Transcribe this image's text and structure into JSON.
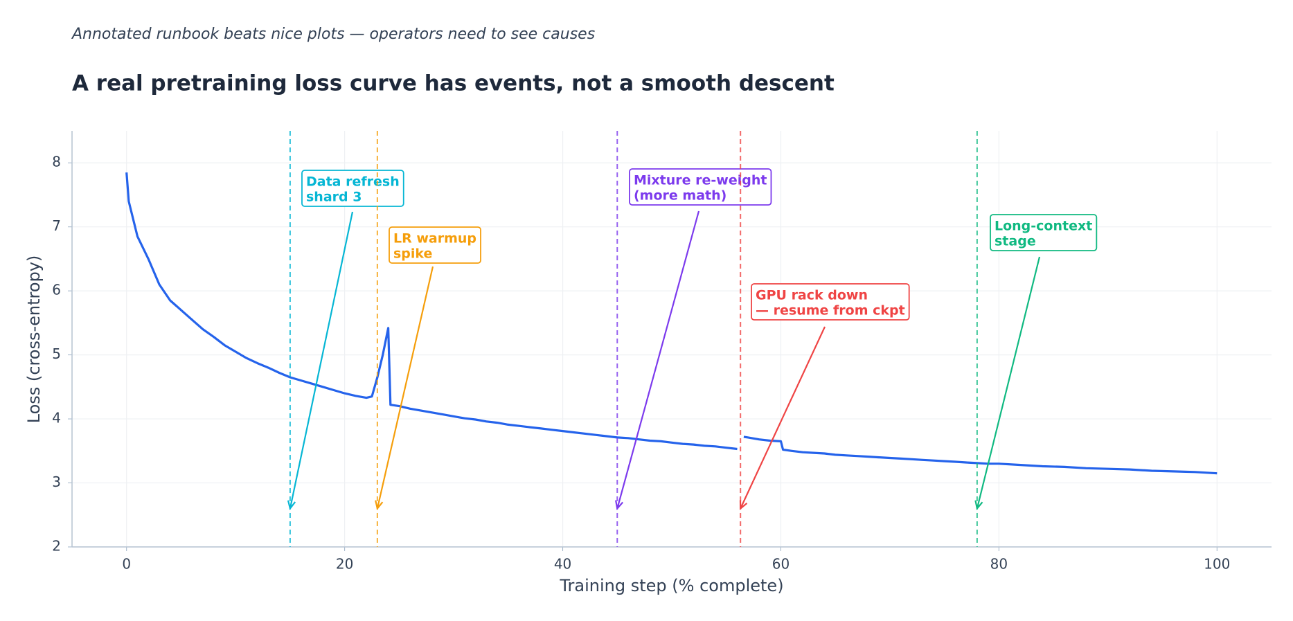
{
  "chart_data": {
    "type": "line",
    "subtitle": "Annotated runbook beats nice plots — operators need to see causes",
    "title": "A real pretraining loss curve has events, not a smooth descent",
    "x_label": "Training step (% complete)",
    "y_label": "Loss (cross-entropy)",
    "xlim": [
      -5,
      105
    ],
    "ylim": [
      2,
      8.5
    ],
    "xticks": [
      0,
      20,
      40,
      60,
      80,
      100
    ],
    "yticks": [
      2,
      3,
      4,
      5,
      6,
      7,
      8
    ],
    "grid": true,
    "color": "#2563eb",
    "x": [
      0,
      0.2,
      1,
      2,
      3,
      4,
      5,
      6,
      7,
      8,
      9,
      10,
      11,
      12,
      13,
      14,
      15,
      16,
      17,
      18,
      19,
      20,
      21,
      22,
      22.5,
      23,
      23.5,
      24,
      24.2,
      25,
      26,
      27,
      28,
      29,
      30,
      31,
      32,
      33,
      34,
      35,
      36,
      37,
      38,
      39,
      40,
      41,
      42,
      43,
      44,
      45,
      46,
      47,
      48,
      49,
      50,
      51,
      52,
      53,
      54,
      55,
      56,
      56.3,
      56.6,
      57,
      58,
      59,
      60,
      60.2,
      61,
      62,
      63,
      64,
      65,
      66,
      67,
      68,
      69,
      70,
      71,
      72,
      73,
      74,
      75,
      76,
      77,
      78,
      79,
      80,
      82,
      84,
      86,
      88,
      90,
      92,
      94,
      96,
      98,
      100
    ],
    "values": [
      7.85,
      7.4,
      6.85,
      6.5,
      6.1,
      5.85,
      5.7,
      5.55,
      5.4,
      5.28,
      5.15,
      5.05,
      4.95,
      4.87,
      4.8,
      4.72,
      4.65,
      4.6,
      4.55,
      4.5,
      4.45,
      4.4,
      4.36,
      4.33,
      4.35,
      4.65,
      5.0,
      5.42,
      4.22,
      4.2,
      4.16,
      4.13,
      4.1,
      4.07,
      4.04,
      4.01,
      3.99,
      3.96,
      3.94,
      3.91,
      3.89,
      3.87,
      3.85,
      3.83,
      3.81,
      3.79,
      3.77,
      3.75,
      3.73,
      3.71,
      3.7,
      3.68,
      3.66,
      3.65,
      3.63,
      3.61,
      3.6,
      3.58,
      3.57,
      3.55,
      3.53,
      null,
      3.72,
      3.71,
      3.68,
      3.66,
      3.65,
      3.52,
      3.5,
      3.48,
      3.47,
      3.46,
      3.44,
      3.43,
      3.42,
      3.41,
      3.4,
      3.39,
      3.38,
      3.37,
      3.36,
      3.35,
      3.34,
      3.33,
      3.32,
      3.31,
      3.3,
      3.3,
      3.28,
      3.26,
      3.25,
      3.23,
      3.22,
      3.21,
      3.19,
      3.18,
      3.17,
      3.15
    ],
    "annotations": [
      {
        "x": 15,
        "y": 2.6,
        "text": [
          "Data refresh",
          "shard 3"
        ],
        "color": "#06b6d4"
      },
      {
        "x": 23,
        "y": 2.6,
        "text": [
          "LR warmup",
          "spike"
        ],
        "color": "#f59e0b"
      },
      {
        "x": 45,
        "y": 2.6,
        "text": [
          "Mixture re-weight",
          "(more math)"
        ],
        "color": "#7c3aed"
      },
      {
        "x": 56.3,
        "y": 2.6,
        "text": [
          "GPU rack down",
          "— resume from ckpt"
        ],
        "color": "#ef4444"
      },
      {
        "x": 78,
        "y": 2.6,
        "text": [
          "Long-context",
          "stage"
        ],
        "color": "#10b981"
      }
    ]
  }
}
